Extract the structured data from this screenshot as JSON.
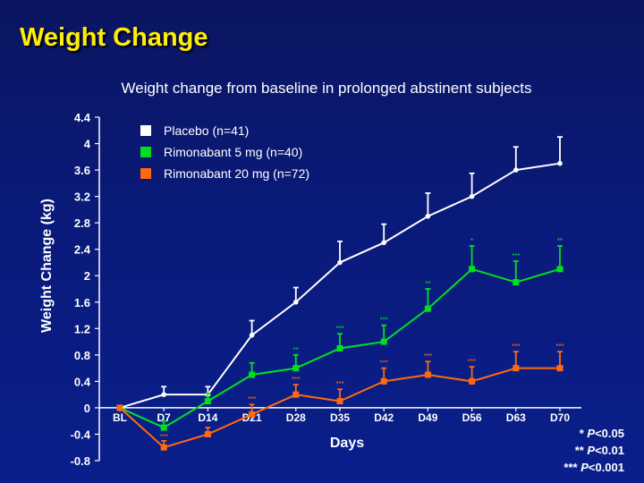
{
  "slide": {
    "title": "Weight Change"
  },
  "colors": {
    "background": "#0a1a7a",
    "title": "#ffee00",
    "text": "#ffffff"
  },
  "chart_data": {
    "type": "line",
    "title": "Weight change from baseline in prolonged abstinent subjects",
    "xlabel": "Days",
    "ylabel": "Weight Change (kg)",
    "ylim": [
      -0.8,
      4.4
    ],
    "yticks": [
      "4.4",
      "4",
      "3.6",
      "3.2",
      "2.8",
      "2.4",
      "2",
      "1.6",
      "1.2",
      "0.8",
      "0.4",
      "0",
      "-0.4",
      "-0.8"
    ],
    "categories": [
      "BL",
      "D7",
      "D14",
      "D21",
      "D28",
      "D35",
      "D42",
      "D49",
      "D56",
      "D63",
      "D70"
    ],
    "legend_position": "top-left",
    "series": [
      {
        "name": "Placebo (n=41)",
        "color": "#ffffff",
        "marker": "circle",
        "values": [
          0,
          0.2,
          0.2,
          1.1,
          1.6,
          2.2,
          2.5,
          2.9,
          3.2,
          3.6,
          3.7
        ],
        "error": [
          0,
          0.12,
          0.12,
          0.22,
          0.22,
          0.32,
          0.28,
          0.35,
          0.35,
          0.35,
          0.4
        ],
        "significance": [
          "",
          "",
          "",
          "",
          "",
          "",
          "",
          "",
          "",
          "",
          ""
        ]
      },
      {
        "name": "Rimonabant 5 mg (n=40)",
        "color": "#00e020",
        "marker": "square",
        "values": [
          0,
          -0.3,
          0.1,
          0.5,
          0.6,
          0.9,
          1.0,
          1.5,
          2.1,
          1.9,
          2.1
        ],
        "error": [
          0,
          0.1,
          0.12,
          0.18,
          0.2,
          0.22,
          0.25,
          0.3,
          0.35,
          0.32,
          0.35
        ],
        "significance": [
          "",
          "",
          "",
          "",
          "**",
          "***",
          "***",
          "**",
          "*",
          "***",
          "**"
        ]
      },
      {
        "name": "Rimonabant 20 mg (n=72)",
        "color": "#ff6a10",
        "marker": "square",
        "values": [
          0,
          -0.6,
          -0.4,
          -0.1,
          0.2,
          0.1,
          0.4,
          0.5,
          0.4,
          0.6,
          0.6
        ],
        "error": [
          0,
          0.1,
          0.1,
          0.15,
          0.15,
          0.18,
          0.2,
          0.2,
          0.22,
          0.25,
          0.25
        ],
        "significance": [
          "",
          "***",
          "",
          "***",
          "***",
          "***",
          "***",
          "***",
          "***",
          "***",
          "***"
        ]
      }
    ]
  },
  "footnotes": [
    {
      "stars": "* ",
      "p": "P",
      "rest": "<0.05"
    },
    {
      "stars": "** ",
      "p": "P",
      "rest": "<0.01"
    },
    {
      "stars": "*** ",
      "p": "P",
      "rest": "<0.001"
    }
  ]
}
